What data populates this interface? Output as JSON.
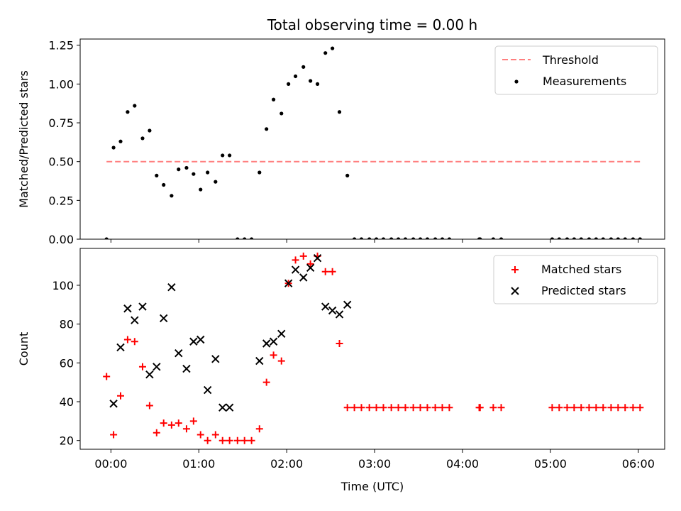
{
  "chart_data": {
    "title": "Total observing time = 0.00 h",
    "xlabel": "Time (UTC)",
    "x_ticks": [
      "00:00",
      "01:00",
      "02:00",
      "03:00",
      "04:00",
      "05:00",
      "06:00"
    ],
    "x_unit": "hours UTC",
    "xlim": [
      -0.35,
      6.3
    ],
    "panels": [
      {
        "type": "scatter",
        "ylabel": "Matched/Predicted stars",
        "ylim": [
          0,
          1.29
        ],
        "y_ticks": [
          "0.00",
          "0.25",
          "0.50",
          "0.75",
          "1.00",
          "1.25"
        ],
        "legend_position": "top-right",
        "threshold": {
          "name": "Threshold",
          "value": 0.5,
          "x_range": [
            -0.05,
            6.02
          ],
          "color": "#ff7f7f"
        },
        "measurements": {
          "name": "Measurements",
          "color": "#000000",
          "points": [
            [
              -0.05,
              0.0
            ],
            [
              0.03,
              0.59
            ],
            [
              0.11,
              0.63
            ],
            [
              0.19,
              0.82
            ],
            [
              0.27,
              0.86
            ],
            [
              0.36,
              0.65
            ],
            [
              0.44,
              0.7
            ],
            [
              0.52,
              0.41
            ],
            [
              0.6,
              0.35
            ],
            [
              0.69,
              0.28
            ],
            [
              0.77,
              0.45
            ],
            [
              0.86,
              0.46
            ],
            [
              0.94,
              0.42
            ],
            [
              1.02,
              0.32
            ],
            [
              1.1,
              0.43
            ],
            [
              1.19,
              0.37
            ],
            [
              1.27,
              0.54
            ],
            [
              1.35,
              0.54
            ],
            [
              1.44,
              0.0
            ],
            [
              1.52,
              0.0
            ],
            [
              1.6,
              0.0
            ],
            [
              1.69,
              0.43
            ],
            [
              1.77,
              0.71
            ],
            [
              1.85,
              0.9
            ],
            [
              1.94,
              0.81
            ],
            [
              2.02,
              1.0
            ],
            [
              2.1,
              1.05
            ],
            [
              2.19,
              1.11
            ],
            [
              2.27,
              1.02
            ],
            [
              2.35,
              1.0
            ],
            [
              2.44,
              1.2
            ],
            [
              2.52,
              1.23
            ],
            [
              2.6,
              0.82
            ],
            [
              2.69,
              0.41
            ],
            [
              2.77,
              0.0
            ],
            [
              2.85,
              0.0
            ],
            [
              2.94,
              0.0
            ],
            [
              3.02,
              0.0
            ],
            [
              3.1,
              0.0
            ],
            [
              3.19,
              0.0
            ],
            [
              3.27,
              0.0
            ],
            [
              3.35,
              0.0
            ],
            [
              3.44,
              0.0
            ],
            [
              3.52,
              0.0
            ],
            [
              3.6,
              0.0
            ],
            [
              3.69,
              0.0
            ],
            [
              3.77,
              0.0
            ],
            [
              3.85,
              0.0
            ],
            [
              4.19,
              0.0
            ],
            [
              4.2,
              0.0
            ],
            [
              4.35,
              0.0
            ],
            [
              4.44,
              0.0
            ],
            [
              5.02,
              0.0
            ],
            [
              5.1,
              0.0
            ],
            [
              5.19,
              0.0
            ],
            [
              5.27,
              0.0
            ],
            [
              5.35,
              0.0
            ],
            [
              5.44,
              0.0
            ],
            [
              5.52,
              0.0
            ],
            [
              5.6,
              0.0
            ],
            [
              5.69,
              0.0
            ],
            [
              5.77,
              0.0
            ],
            [
              5.85,
              0.0
            ],
            [
              5.94,
              0.0
            ],
            [
              6.02,
              0.0
            ]
          ]
        }
      },
      {
        "type": "scatter",
        "ylabel": "Count",
        "ylim": [
          15.5,
          119
        ],
        "y_ticks": [
          "20",
          "40",
          "60",
          "80",
          "100"
        ],
        "legend_position": "top-right",
        "series": [
          {
            "name": "Matched stars",
            "marker": "plus",
            "color": "#ff0000",
            "points": [
              [
                -0.05,
                53
              ],
              [
                0.03,
                23
              ],
              [
                0.11,
                43
              ],
              [
                0.19,
                72
              ],
              [
                0.27,
                71
              ],
              [
                0.36,
                58
              ],
              [
                0.44,
                38
              ],
              [
                0.52,
                24
              ],
              [
                0.6,
                29
              ],
              [
                0.69,
                28
              ],
              [
                0.77,
                29
              ],
              [
                0.86,
                26
              ],
              [
                0.94,
                30
              ],
              [
                1.02,
                23
              ],
              [
                1.1,
                20
              ],
              [
                1.19,
                23
              ],
              [
                1.27,
                20
              ],
              [
                1.35,
                20
              ],
              [
                1.44,
                20
              ],
              [
                1.52,
                20
              ],
              [
                1.6,
                20
              ],
              [
                1.69,
                26
              ],
              [
                1.77,
                50
              ],
              [
                1.85,
                64
              ],
              [
                1.94,
                61
              ],
              [
                2.02,
                101
              ],
              [
                2.1,
                113
              ],
              [
                2.19,
                115
              ],
              [
                2.27,
                111
              ],
              [
                2.35,
                115
              ],
              [
                2.44,
                107
              ],
              [
                2.52,
                107
              ],
              [
                2.6,
                70
              ],
              [
                2.69,
                37
              ],
              [
                2.77,
                37
              ],
              [
                2.85,
                37
              ],
              [
                2.94,
                37
              ],
              [
                3.02,
                37
              ],
              [
                3.1,
                37
              ],
              [
                3.19,
                37
              ],
              [
                3.27,
                37
              ],
              [
                3.35,
                37
              ],
              [
                3.44,
                37
              ],
              [
                3.52,
                37
              ],
              [
                3.6,
                37
              ],
              [
                3.69,
                37
              ],
              [
                3.77,
                37
              ],
              [
                3.85,
                37
              ],
              [
                4.19,
                37
              ],
              [
                4.2,
                37
              ],
              [
                4.35,
                37
              ],
              [
                4.44,
                37
              ],
              [
                5.02,
                37
              ],
              [
                5.1,
                37
              ],
              [
                5.19,
                37
              ],
              [
                5.27,
                37
              ],
              [
                5.35,
                37
              ],
              [
                5.44,
                37
              ],
              [
                5.52,
                37
              ],
              [
                5.6,
                37
              ],
              [
                5.69,
                37
              ],
              [
                5.77,
                37
              ],
              [
                5.85,
                37
              ],
              [
                5.94,
                37
              ],
              [
                6.02,
                37
              ]
            ]
          },
          {
            "name": "Predicted stars",
            "marker": "x",
            "color": "#000000",
            "points": [
              [
                0.03,
                39
              ],
              [
                0.11,
                68
              ],
              [
                0.19,
                88
              ],
              [
                0.27,
                82
              ],
              [
                0.36,
                89
              ],
              [
                0.44,
                54
              ],
              [
                0.52,
                58
              ],
              [
                0.6,
                83
              ],
              [
                0.69,
                99
              ],
              [
                0.77,
                65
              ],
              [
                0.86,
                57
              ],
              [
                0.94,
                71
              ],
              [
                1.02,
                72
              ],
              [
                1.1,
                46
              ],
              [
                1.19,
                62
              ],
              [
                1.27,
                37
              ],
              [
                1.35,
                37
              ],
              [
                1.69,
                61
              ],
              [
                1.77,
                70
              ],
              [
                1.85,
                71
              ],
              [
                1.94,
                75
              ],
              [
                2.02,
                101
              ],
              [
                2.1,
                108
              ],
              [
                2.19,
                104
              ],
              [
                2.27,
                109
              ],
              [
                2.35,
                114
              ],
              [
                2.44,
                89
              ],
              [
                2.52,
                87
              ],
              [
                2.6,
                85
              ],
              [
                2.69,
                90
              ]
            ]
          }
        ]
      }
    ]
  }
}
